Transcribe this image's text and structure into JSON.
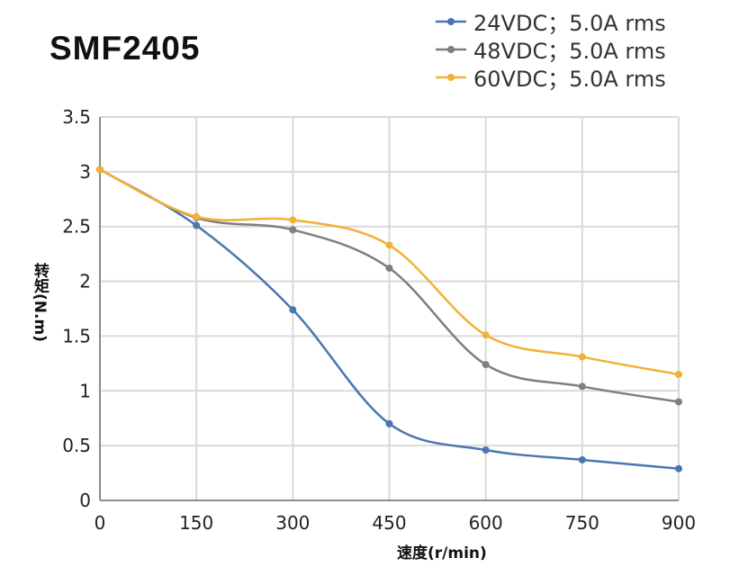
{
  "chart_data": {
    "type": "line",
    "title": "SMF2405",
    "xlabel": "速度(r/min)",
    "ylabel": "转矩(N.m)",
    "xlim": [
      0,
      900
    ],
    "ylim": [
      0,
      3.5
    ],
    "x_ticks": [
      "0",
      "150",
      "300",
      "450",
      "600",
      "750",
      "900"
    ],
    "y_ticks": [
      "0",
      "0.5",
      "1",
      "1.5",
      "2",
      "2.5",
      "3",
      "3.5"
    ],
    "grid": true,
    "legend_position": "top-right",
    "x": [
      0,
      150,
      300,
      450,
      600,
      750,
      900
    ],
    "series": [
      {
        "name": "24VDC；5.0A rms",
        "color": "#4a76b0",
        "values": [
          3.02,
          2.51,
          1.74,
          0.7,
          0.46,
          0.37,
          0.29
        ]
      },
      {
        "name": "48VDC；5.0A rms",
        "color": "#7f7f7f",
        "values": [
          3.02,
          2.58,
          2.47,
          2.12,
          1.24,
          1.04,
          0.9
        ]
      },
      {
        "name": "60VDC；5.0A rms",
        "color": "#f2b134",
        "values": [
          3.02,
          2.59,
          2.56,
          2.33,
          1.51,
          1.31,
          1.15
        ]
      }
    ]
  }
}
